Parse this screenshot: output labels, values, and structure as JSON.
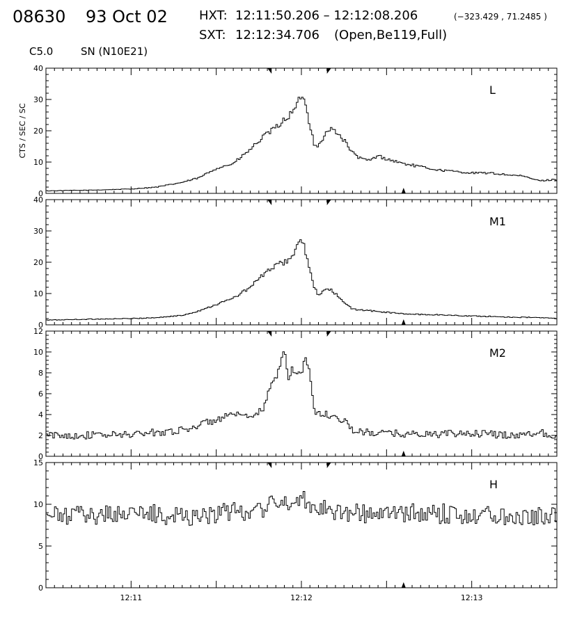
{
  "header": {
    "event_id": "08630",
    "date": "93 Oct 02",
    "hxt_label": "HXT:",
    "hxt_range": "12:11:50.206 – 12:12:08.206",
    "position": "(−323.429 , 71.2485 )",
    "sxt_label": "SXT:",
    "sxt_time": "12:12:34.706",
    "sxt_config": "(Open,Be119,Full)",
    "goes_class": "C5.0",
    "location": "SN (N10E21)"
  },
  "colors": {
    "line": "#000000",
    "background": "#ffffff"
  },
  "chart_data": [
    {
      "type": "line",
      "panel_label": "L",
      "ylabel": "CTS / SEC / SC",
      "ylim": [
        0,
        40
      ],
      "yticks": [
        0,
        10,
        20,
        30,
        40
      ],
      "ytick_labels": [
        "0",
        "10",
        "20",
        "30",
        "40"
      ],
      "style": "step",
      "x_unit": "minutes after 12:10",
      "series": [
        {
          "x": [
            0.0,
            0.5,
            1.0,
            1.3,
            1.6,
            1.8,
            2.0,
            2.2,
            2.4,
            2.55,
            2.7,
            2.8,
            2.9,
            2.95,
            3.0,
            3.05,
            3.1,
            3.15,
            3.2,
            3.25,
            3.3,
            3.35,
            3.4,
            3.5,
            3.6,
            3.7,
            3.8,
            3.9,
            4.0,
            4.2,
            4.4,
            4.6,
            4.8,
            5.0,
            5.2,
            5.4,
            5.6,
            5.8,
            6.0
          ],
          "y": [
            0.8,
            1.0,
            1.4,
            2.0,
            3.5,
            5.0,
            8.0,
            9.5,
            14.0,
            18.0,
            21.0,
            23.5,
            26.0,
            28.0,
            32.0,
            28.0,
            22.0,
            16.0,
            15.0,
            17.5,
            19.5,
            20.5,
            20.0,
            17.0,
            13.0,
            11.0,
            10.5,
            12.0,
            11.0,
            9.5,
            8.5,
            7.5,
            7.0,
            6.5,
            6.5,
            6.0,
            5.5,
            4.0,
            4.5
          ]
        }
      ]
    },
    {
      "type": "line",
      "panel_label": "M1",
      "ylim": [
        0,
        40
      ],
      "yticks": [
        0,
        10,
        20,
        30,
        40
      ],
      "ytick_labels": [
        "0",
        "10",
        "20",
        "30",
        "40"
      ],
      "style": "step",
      "series": [
        {
          "x": [
            0.0,
            0.5,
            1.0,
            1.3,
            1.6,
            1.8,
            2.0,
            2.2,
            2.4,
            2.55,
            2.7,
            2.8,
            2.9,
            2.95,
            3.0,
            3.05,
            3.1,
            3.15,
            3.2,
            3.25,
            3.3,
            3.35,
            3.4,
            3.5,
            3.6,
            3.7,
            3.8,
            4.0,
            4.2,
            4.4,
            4.6,
            4.8,
            5.0,
            5.2,
            5.4,
            5.6,
            5.8,
            6.0
          ],
          "y": [
            1.5,
            1.8,
            2.0,
            2.3,
            3.0,
            4.5,
            6.5,
            8.5,
            12.0,
            16.0,
            19.0,
            20.0,
            22.0,
            25.0,
            28.0,
            23.0,
            17.0,
            12.0,
            9.5,
            10.5,
            11.5,
            11.0,
            10.0,
            7.0,
            5.0,
            4.8,
            4.5,
            4.0,
            3.5,
            3.3,
            3.2,
            3.0,
            2.8,
            2.7,
            2.5,
            2.4,
            2.3,
            2.0
          ]
        }
      ]
    },
    {
      "type": "line",
      "panel_label": "M2",
      "ylim": [
        0,
        12
      ],
      "yticks": [
        0,
        2,
        4,
        6,
        8,
        10,
        12
      ],
      "ytick_labels": [
        "0",
        "2",
        "4",
        "6",
        "8",
        "10",
        "12"
      ],
      "style": "step",
      "series": [
        {
          "x": [
            0.0,
            0.5,
            1.0,
            1.3,
            1.6,
            1.8,
            2.0,
            2.2,
            2.4,
            2.55,
            2.6,
            2.7,
            2.75,
            2.8,
            2.85,
            2.9,
            2.95,
            3.0,
            3.05,
            3.1,
            3.15,
            3.2,
            3.3,
            3.5,
            3.6,
            3.7,
            4.0,
            4.5,
            5.0,
            5.5,
            5.8,
            6.0
          ],
          "y": [
            2.0,
            2.0,
            2.1,
            2.3,
            2.5,
            3.0,
            3.5,
            4.0,
            3.6,
            4.5,
            6.0,
            7.5,
            8.5,
            10.5,
            7.5,
            8.5,
            7.8,
            8.0,
            9.5,
            8.0,
            4.5,
            4.0,
            4.0,
            3.5,
            2.5,
            2.3,
            2.2,
            2.1,
            2.2,
            2.0,
            2.3,
            2.0
          ]
        }
      ]
    },
    {
      "type": "line",
      "panel_label": "H",
      "ylim": [
        0,
        15
      ],
      "yticks": [
        0,
        5,
        10,
        15
      ],
      "ytick_labels": [
        "0",
        "5",
        "10",
        "15"
      ],
      "style": "step",
      "xticks": [
        1,
        3,
        5
      ],
      "xtick_labels": [
        "12:11",
        "12:12",
        "12:13"
      ],
      "series": [
        {
          "x": [
            0.0,
            0.5,
            1.0,
            1.5,
            2.0,
            2.5,
            2.8,
            3.0,
            3.2,
            3.5,
            4.0,
            4.5,
            5.0,
            5.5,
            6.0
          ],
          "y": [
            8.5,
            8.7,
            9.0,
            8.6,
            8.8,
            9.5,
            10.2,
            10.6,
            9.8,
            9.0,
            8.8,
            8.9,
            8.8,
            8.7,
            8.6
          ]
        }
      ]
    }
  ]
}
